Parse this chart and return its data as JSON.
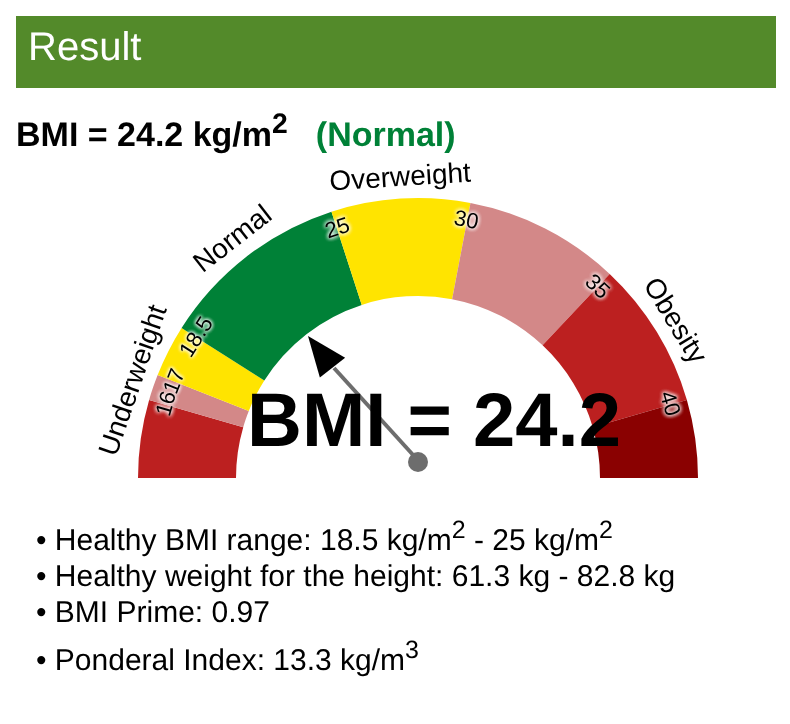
{
  "chart_data": {
    "type": "donut",
    "title": "Result",
    "subtitle": "BMI = 24.2 kg/m$^{2}$",
    "categories": [
      null,
      "Underweight",
      null,
      "Normal",
      "Overweight",
      null,
      "Obesity",
      null
    ],
    "values": [
      9,
      3,
      6,
      22,
      16,
      18,
      17,
      9
    ],
    "colors": [
      "#bc2020",
      "#d38888",
      "#ffe400",
      "#008137",
      "#ffe400",
      "#d38888",
      "#bc2020",
      "#8a0101"
    ],
    "needle": "Normal",
    "annotations": [
      "(Normal)",
      "16",
      "17",
      "18.5",
      "25",
      "30",
      "35",
      "40",
      "BMI = 24.2",
      "• Healthy BMI range: 18.5 kg/m$^{2}$ - 25 kg/m$^{2}$",
      "• Healthy weight for the height: 61.3 kg - 82.8 kg",
      "• BMI Prime: 0.97",
      "• Ponderal Index: 13.3 kg/m$^{3}$"
    ]
  }
}
